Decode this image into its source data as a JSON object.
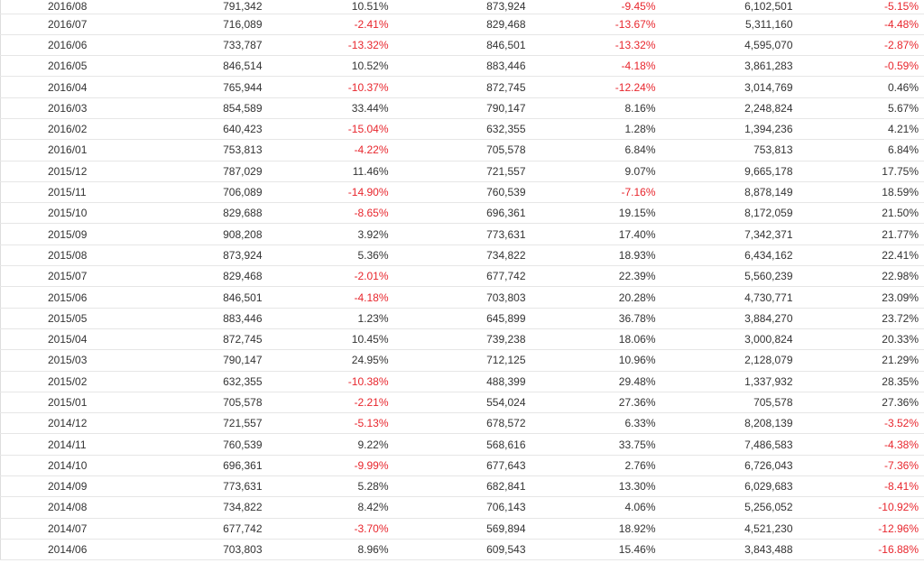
{
  "colors": {
    "negative": "#e8262d",
    "positive": "#333333",
    "grid": "#e6e6e6"
  },
  "rows": [
    [
      "2016/08",
      "791,342",
      "10.51%",
      "873,924",
      "-9.45%",
      "6,102,501",
      "-5.15%"
    ],
    [
      "2016/07",
      "716,089",
      "-2.41%",
      "829,468",
      "-13.67%",
      "5,311,160",
      "-4.48%"
    ],
    [
      "2016/06",
      "733,787",
      "-13.32%",
      "846,501",
      "-13.32%",
      "4,595,070",
      "-2.87%"
    ],
    [
      "2016/05",
      "846,514",
      "10.52%",
      "883,446",
      "-4.18%",
      "3,861,283",
      "-0.59%"
    ],
    [
      "2016/04",
      "765,944",
      "-10.37%",
      "872,745",
      "-12.24%",
      "3,014,769",
      "0.46%"
    ],
    [
      "2016/03",
      "854,589",
      "33.44%",
      "790,147",
      "8.16%",
      "2,248,824",
      "5.67%"
    ],
    [
      "2016/02",
      "640,423",
      "-15.04%",
      "632,355",
      "1.28%",
      "1,394,236",
      "4.21%"
    ],
    [
      "2016/01",
      "753,813",
      "-4.22%",
      "705,578",
      "6.84%",
      "753,813",
      "6.84%"
    ],
    [
      "2015/12",
      "787,029",
      "11.46%",
      "721,557",
      "9.07%",
      "9,665,178",
      "17.75%"
    ],
    [
      "2015/11",
      "706,089",
      "-14.90%",
      "760,539",
      "-7.16%",
      "8,878,149",
      "18.59%"
    ],
    [
      "2015/10",
      "829,688",
      "-8.65%",
      "696,361",
      "19.15%",
      "8,172,059",
      "21.50%"
    ],
    [
      "2015/09",
      "908,208",
      "3.92%",
      "773,631",
      "17.40%",
      "7,342,371",
      "21.77%"
    ],
    [
      "2015/08",
      "873,924",
      "5.36%",
      "734,822",
      "18.93%",
      "6,434,162",
      "22.41%"
    ],
    [
      "2015/07",
      "829,468",
      "-2.01%",
      "677,742",
      "22.39%",
      "5,560,239",
      "22.98%"
    ],
    [
      "2015/06",
      "846,501",
      "-4.18%",
      "703,803",
      "20.28%",
      "4,730,771",
      "23.09%"
    ],
    [
      "2015/05",
      "883,446",
      "1.23%",
      "645,899",
      "36.78%",
      "3,884,270",
      "23.72%"
    ],
    [
      "2015/04",
      "872,745",
      "10.45%",
      "739,238",
      "18.06%",
      "3,000,824",
      "20.33%"
    ],
    [
      "2015/03",
      "790,147",
      "24.95%",
      "712,125",
      "10.96%",
      "2,128,079",
      "21.29%"
    ],
    [
      "2015/02",
      "632,355",
      "-10.38%",
      "488,399",
      "29.48%",
      "1,337,932",
      "28.35%"
    ],
    [
      "2015/01",
      "705,578",
      "-2.21%",
      "554,024",
      "27.36%",
      "705,578",
      "27.36%"
    ],
    [
      "2014/12",
      "721,557",
      "-5.13%",
      "678,572",
      "6.33%",
      "8,208,139",
      "-3.52%"
    ],
    [
      "2014/11",
      "760,539",
      "9.22%",
      "568,616",
      "33.75%",
      "7,486,583",
      "-4.38%"
    ],
    [
      "2014/10",
      "696,361",
      "-9.99%",
      "677,643",
      "2.76%",
      "6,726,043",
      "-7.36%"
    ],
    [
      "2014/09",
      "773,631",
      "5.28%",
      "682,841",
      "13.30%",
      "6,029,683",
      "-8.41%"
    ],
    [
      "2014/08",
      "734,822",
      "8.42%",
      "706,143",
      "4.06%",
      "5,256,052",
      "-10.92%"
    ],
    [
      "2014/07",
      "677,742",
      "-3.70%",
      "569,894",
      "18.92%",
      "4,521,230",
      "-12.96%"
    ],
    [
      "2014/06",
      "703,803",
      "8.96%",
      "609,543",
      "15.46%",
      "3,843,488",
      "-16.88%"
    ]
  ]
}
